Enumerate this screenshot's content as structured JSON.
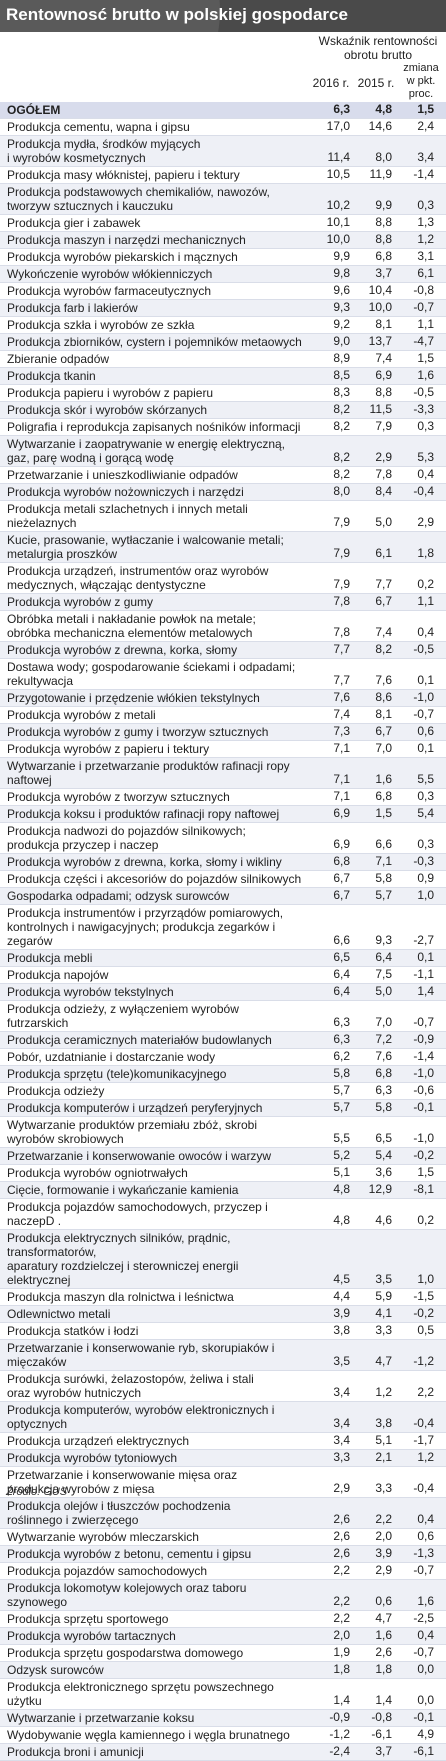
{
  "title": "Rentownosć brutto w polskiej gospodarce",
  "header": {
    "group": "Wskaźnik rentowności obrotu brutto",
    "col_2016": "2016 r.",
    "col_2015": "2015 r.",
    "col_change": "zmiana w pkt. proc."
  },
  "source": "Źródło: GUS",
  "chart_data": {
    "type": "table",
    "title": "Rentownosć brutto w polskiej gospodarce",
    "columns": [
      "",
      "2016 r.",
      "2015 r.",
      "zmiana w pkt. proc."
    ],
    "rows": [
      {
        "name": "OGÓŁEM",
        "v2016": "6,3",
        "v2015": "4,8",
        "change": "1,5",
        "lines": 1
      },
      {
        "name": "Produkcja cementu, wapna i gipsu",
        "v2016": "17,0",
        "v2015": "14,6",
        "change": "2,4",
        "lines": 1
      },
      {
        "name": "Produkcja mydła, środków myjących\ni wyrobów kosmetycznych",
        "v2016": "11,4",
        "v2015": "8,0",
        "change": "3,4",
        "lines": 2
      },
      {
        "name": "Produkcja masy włóknistej, papieru i tektury",
        "v2016": "10,5",
        "v2015": "11,9",
        "change": "-1,4",
        "lines": 1
      },
      {
        "name": "Produkcja podstawowych chemikaliów, nawozów,\ntworzyw sztucznych i kauczuku",
        "v2016": "10,2",
        "v2015": "9,9",
        "change": "0,3",
        "lines": 2
      },
      {
        "name": "Produkcja gier i zabawek",
        "v2016": "10,1",
        "v2015": "8,8",
        "change": "1,3",
        "lines": 1
      },
      {
        "name": "Produkcja maszyn i narzędzi mechanicznych",
        "v2016": "10,0",
        "v2015": "8,8",
        "change": "1,2",
        "lines": 1
      },
      {
        "name": "Produkcja wyrobów piekarskich i mącznych",
        "v2016": "9,9",
        "v2015": "6,8",
        "change": "3,1",
        "lines": 1
      },
      {
        "name": "Wykończenie wyrobów włókienniczych",
        "v2016": "9,8",
        "v2015": "3,7",
        "change": "6,1",
        "lines": 1
      },
      {
        "name": "Produkcja wyrobów farmaceutycznych",
        "v2016": "9,6",
        "v2015": "10,4",
        "change": "-0,8",
        "lines": 1
      },
      {
        "name": "Produkcja farb i lakierów",
        "v2016": "9,3",
        "v2015": "10,0",
        "change": "-0,7",
        "lines": 1
      },
      {
        "name": "Produkcja szkła i wyrobów ze szkła",
        "v2016": "9,2",
        "v2015": "8,1",
        "change": "1,1",
        "lines": 1
      },
      {
        "name": "Produkcja zbiorników, cystern i pojemników metaowych",
        "v2016": "9,0",
        "v2015": "13,7",
        "change": "-4,7",
        "lines": 1
      },
      {
        "name": "Zbieranie odpadów",
        "v2016": "8,9",
        "v2015": "7,4",
        "change": "1,5",
        "lines": 1
      },
      {
        "name": "Produkcja tkanin",
        "v2016": "8,5",
        "v2015": "6,9",
        "change": "1,6",
        "lines": 1
      },
      {
        "name": "Produkcja papieru i wyrobów z papieru",
        "v2016": "8,3",
        "v2015": "8,8",
        "change": "-0,5",
        "lines": 1
      },
      {
        "name": "Produkcja skór i wyrobów skórzanych",
        "v2016": "8,2",
        "v2015": "11,5",
        "change": "-3,3",
        "lines": 1
      },
      {
        "name": "Poligrafia i reprodukcja zapisanych nośników informacji",
        "v2016": "8,2",
        "v2015": "7,9",
        "change": "0,3",
        "lines": 1
      },
      {
        "name": "Wytwarzanie i zaopatrywanie w energię elektryczną,\ngaz, parę wodną i gorącą wodę",
        "v2016": "8,2",
        "v2015": "2,9",
        "change": "5,3",
        "lines": 2
      },
      {
        "name": "Przetwarzanie i unieszkodliwianie odpadów",
        "v2016": "8,2",
        "v2015": "7,8",
        "change": "0,4",
        "lines": 1
      },
      {
        "name": "Produkcja wyrobów nożowniczych i narzędzi",
        "v2016": "8,0",
        "v2015": "8,4",
        "change": "-0,4",
        "lines": 1
      },
      {
        "name": "Produkcja metali szlachetnych i innych metali nieżelaznych",
        "v2016": "7,9",
        "v2015": "5,0",
        "change": "2,9",
        "lines": 1
      },
      {
        "name": "Kucie, prasowanie, wytłaczanie i walcowanie metali;\nmetalurgia proszków",
        "v2016": "7,9",
        "v2015": "6,1",
        "change": "1,8",
        "lines": 2
      },
      {
        "name": "Produkcja urządzeń, instrumentów oraz wyrobów\nmedycznych, włączając dentystyczne",
        "v2016": "7,9",
        "v2015": "7,7",
        "change": "0,2",
        "lines": 2
      },
      {
        "name": "Produkcja wyrobów z gumy",
        "v2016": "7,8",
        "v2015": "6,7",
        "change": "1,1",
        "lines": 1
      },
      {
        "name": "Obróbka metali i nakładanie powłok na metale;\nobróbka mechaniczna elementów metalowych",
        "v2016": "7,8",
        "v2015": "7,4",
        "change": "0,4",
        "lines": 2
      },
      {
        "name": "Produkcja wyrobów z drewna, korka, słomy",
        "v2016": "7,7",
        "v2015": "8,2",
        "change": "-0,5",
        "lines": 1
      },
      {
        "name": "Dostawa wody; gospodarowanie ściekami i odpadami;\nrekultywacja",
        "v2016": "7,7",
        "v2015": "7,6",
        "change": "0,1",
        "lines": 2
      },
      {
        "name": "Przygotowanie i przędzenie włókien tekstylnych",
        "v2016": "7,6",
        "v2015": "8,6",
        "change": "-1,0",
        "lines": 1
      },
      {
        "name": "Produkcja wyrobów z metali",
        "v2016": "7,4",
        "v2015": "8,1",
        "change": "-0,7",
        "lines": 1
      },
      {
        "name": "Produkcja wyrobów z gumy i tworzyw sztucznych",
        "v2016": "7,3",
        "v2015": "6,7",
        "change": "0,6",
        "lines": 1
      },
      {
        "name": "Produkcja wyrobów z papieru i tektury",
        "v2016": "7,1",
        "v2015": "7,0",
        "change": "0,1",
        "lines": 1
      },
      {
        "name": "Wytwarzanie i przetwarzanie produktów rafinacji ropy naftowej",
        "v2016": "7,1",
        "v2015": "1,6",
        "change": "5,5",
        "lines": 1
      },
      {
        "name": "Produkcja wyrobów z tworzyw sztucznych",
        "v2016": "7,1",
        "v2015": "6,8",
        "change": "0,3",
        "lines": 1
      },
      {
        "name": "Produkcja koksu i produktów rafinacji ropy naftowej",
        "v2016": "6,9",
        "v2015": "1,5",
        "change": "5,4",
        "lines": 1
      },
      {
        "name": "Produkcja nadwozi do pojazdów silnikowych;\nprodukcja przyczep i naczep",
        "v2016": "6,9",
        "v2015": "6,6",
        "change": "0,3",
        "lines": 2
      },
      {
        "name": "Produkcja wyrobów z drewna, korka, słomy i wikliny",
        "v2016": "6,8",
        "v2015": "7,1",
        "change": "-0,3",
        "lines": 1
      },
      {
        "name": "Produkcja części i akcesoriów do pojazdów silnikowych",
        "v2016": "6,7",
        "v2015": "5,8",
        "change": "0,9",
        "lines": 1
      },
      {
        "name": "Gospodarka odpadami; odzysk surowców",
        "v2016": "6,7",
        "v2015": "5,7",
        "change": "1,0",
        "lines": 1
      },
      {
        "name": "Produkcja instrumentów i przyrządów pomiarowych,\nkontrolnych i nawigacyjnych; produkcja zegarków i zegarów",
        "v2016": "6,6",
        "v2015": "9,3",
        "change": "-2,7",
        "lines": 2
      },
      {
        "name": "Produkcja mebli",
        "v2016": "6,5",
        "v2015": "6,4",
        "change": "0,1",
        "lines": 1
      },
      {
        "name": "Produkcja napojów",
        "v2016": "6,4",
        "v2015": "7,5",
        "change": "-1,1",
        "lines": 1
      },
      {
        "name": "Produkcja wyrobów tekstylnych",
        "v2016": "6,4",
        "v2015": "5,0",
        "change": "1,4",
        "lines": 1
      },
      {
        "name": "Produkcja odzieży, z wyłączeniem wyrobów futrzarskich",
        "v2016": "6,3",
        "v2015": "7,0",
        "change": "-0,7",
        "lines": 1
      },
      {
        "name": "Produkcja ceramicznych materiałów budowlanych",
        "v2016": "6,3",
        "v2015": "7,2",
        "change": "-0,9",
        "lines": 1
      },
      {
        "name": "Pobór, uzdatnianie i dostarczanie wody",
        "v2016": "6,2",
        "v2015": "7,6",
        "change": "-1,4",
        "lines": 1
      },
      {
        "name": "Produkcja sprzętu (tele)komunikacyjnego",
        "v2016": "5,8",
        "v2015": "6,8",
        "change": "-1,0",
        "lines": 1
      },
      {
        "name": "Produkcja odzieży",
        "v2016": "5,7",
        "v2015": "6,3",
        "change": "-0,6",
        "lines": 1
      },
      {
        "name": "Produkcja komputerów i urządzeń peryferyjnych",
        "v2016": "5,7",
        "v2015": "5,8",
        "change": "-0,1",
        "lines": 1
      },
      {
        "name": "Wytwarzanie produktów przemiału zbóż, skrobi\nwyrobów skrobiowych",
        "v2016": "5,5",
        "v2015": "6,5",
        "change": "-1,0",
        "lines": 2
      },
      {
        "name": "Przetwarzanie i konserwowanie owoców i warzyw",
        "v2016": "5,2",
        "v2015": "5,4",
        "change": "-0,2",
        "lines": 1
      },
      {
        "name": "Produkcja wyrobów ogniotrwałych",
        "v2016": "5,1",
        "v2015": "3,6",
        "change": "1,5",
        "lines": 1
      },
      {
        "name": "Cięcie, formowanie i wykańczanie kamienia",
        "v2016": "4,8",
        "v2015": "12,9",
        "change": "-8,1",
        "lines": 1
      },
      {
        "name": "Produkcja pojazdów samochodowych, przyczep i naczepD .",
        "v2016": "4,8",
        "v2015": "4,6",
        "change": "0,2",
        "lines": 1
      },
      {
        "name": "Produkcja elektrycznych silników, prądnic, transformatorów,\naparatury rozdzielczej i sterowniczej  energii elektrycznej",
        "v2016": "4,5",
        "v2015": "3,5",
        "change": "1,0",
        "lines": 2
      },
      {
        "name": "Produkcja maszyn dla rolnictwa i leśnictwa",
        "v2016": "4,4",
        "v2015": "5,9",
        "change": "-1,5",
        "lines": 1
      },
      {
        "name": "Odlewnictwo metali",
        "v2016": "3,9",
        "v2015": "4,1",
        "change": "-0,2",
        "lines": 1
      },
      {
        "name": "Produkcja statków i łodzi",
        "v2016": "3,8",
        "v2015": "3,3",
        "change": "0,5",
        "lines": 1
      },
      {
        "name": "Przetwarzanie i konserwowanie ryb, skorupiaków i mięczaków",
        "v2016": "3,5",
        "v2015": "4,7",
        "change": "-1,2",
        "lines": 1
      },
      {
        "name": "Produkcja surówki, żelazostopów, żeliwa i stali\noraz wyrobów hutniczych",
        "v2016": "3,4",
        "v2015": "1,2",
        "change": "2,2",
        "lines": 2
      },
      {
        "name": "Produkcja  komputerów, wyrobów elektronicznych i optycznych",
        "v2016": "3,4",
        "v2015": "3,8",
        "change": "-0,4",
        "lines": 1
      },
      {
        "name": "Produkcja urządzeń elektrycznych",
        "v2016": "3,4",
        "v2015": "5,1",
        "change": "-1,7",
        "lines": 1
      },
      {
        "name": "Produkcja wyrobów tytoniowych",
        "v2016": "3,3",
        "v2015": "2,1",
        "change": "1,2",
        "lines": 1
      },
      {
        "name": "Przetwarzanie i konserwowanie mięsa oraz\nprodukcja wyrobów z mięsa",
        "v2016": "2,9",
        "v2015": "3,3",
        "change": "-0,4",
        "lines": 2
      },
      {
        "name": "Produkcja olejów i tłuszczów pochodzenia\nroślinnego i zwierzęcego",
        "v2016": "2,6",
        "v2015": "2,2",
        "change": "0,4",
        "lines": 2
      },
      {
        "name": "Wytwarzanie wyrobów mleczarskich",
        "v2016": "2,6",
        "v2015": "2,0",
        "change": "0,6",
        "lines": 1
      },
      {
        "name": "Produkcja wyrobów z betonu, cementu i gipsu",
        "v2016": "2,6",
        "v2015": "3,9",
        "change": "-1,3",
        "lines": 1
      },
      {
        "name": "Produkcja pojazdów samochodowych",
        "v2016": "2,2",
        "v2015": "2,9",
        "change": "-0,7",
        "lines": 1
      },
      {
        "name": "Produkcja lokomotyw kolejowych oraz taboru  szynowego",
        "v2016": "2,2",
        "v2015": "0,6",
        "change": "1,6",
        "lines": 1
      },
      {
        "name": "Produkcja sprzętu sportowego",
        "v2016": "2,2",
        "v2015": "4,7",
        "change": "-2,5",
        "lines": 1
      },
      {
        "name": "Produkcja wyrobów tartacznych",
        "v2016": "2,0",
        "v2015": "1,6",
        "change": "0,4",
        "lines": 1
      },
      {
        "name": "Produkcja sprzętu gospodarstwa domowego",
        "v2016": "1,9",
        "v2015": "2,6",
        "change": "-0,7",
        "lines": 1
      },
      {
        "name": "Odzysk surowców",
        "v2016": "1,8",
        "v2015": "1,8",
        "change": "0,0",
        "lines": 1
      },
      {
        "name": "Produkcja elektronicznego sprzętu powszechnego użytku",
        "v2016": "1,4",
        "v2015": "1,4",
        "change": "0,0",
        "lines": 1
      },
      {
        "name": "Wytwarzanie i przetwarzanie koksu",
        "v2016": "-0,9",
        "v2015": "-0,8",
        "change": "-0,1",
        "lines": 1
      },
      {
        "name": "Wydobywanie węgla kamiennego i węgla brunatnego",
        "v2016": "-1,2",
        "v2015": "-6,1",
        "change": "4,9",
        "lines": 1
      },
      {
        "name": "Produkcja broni i amunicji",
        "v2016": "-2,4",
        "v2015": "3,7",
        "change": "-6,1",
        "lines": 1
      }
    ]
  }
}
